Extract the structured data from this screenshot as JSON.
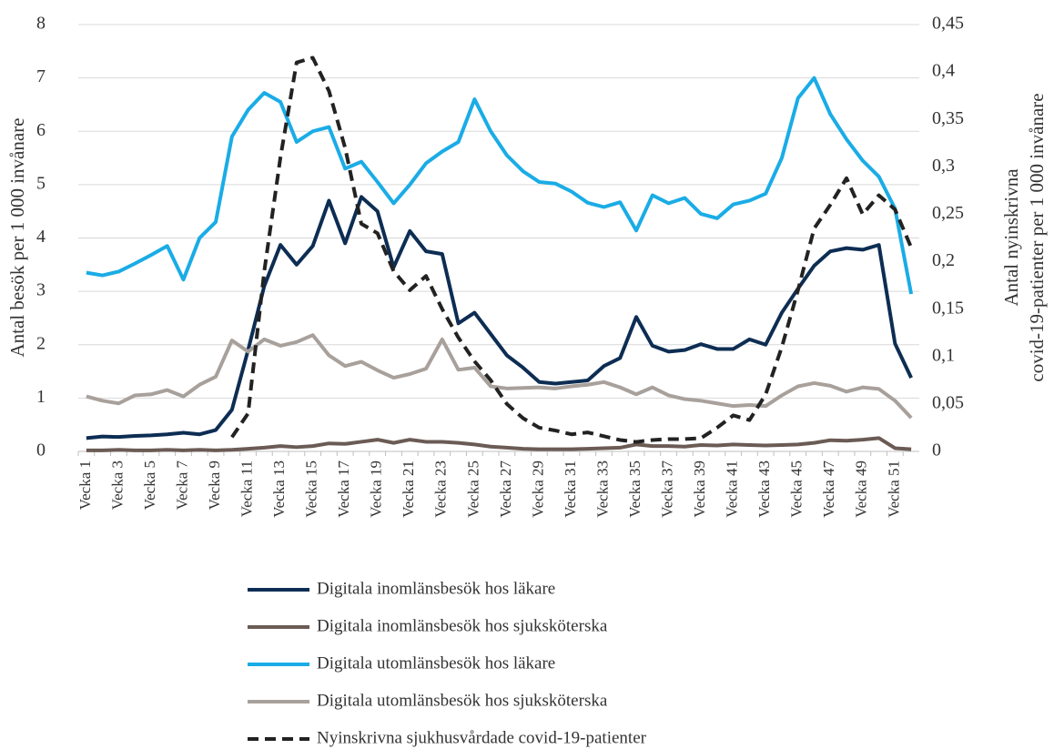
{
  "chart_data": {
    "type": "line",
    "ylabel": "Antal besök per 1 000 invånare",
    "y2label": [
      "Antal nyinskrivna",
      "covid-19-patienter per 1 000 invånare"
    ],
    "categories": [
      "Vecka 1",
      null,
      "Vecka 3",
      null,
      "Vecka 5",
      null,
      "Vecka 7",
      null,
      "Vecka 9",
      null,
      "Vecka 11",
      null,
      "Vecka 13",
      null,
      "Vecka 15",
      null,
      "Vecka 17",
      null,
      "Vecka 19",
      null,
      "Vecka 21",
      null,
      "Vecka 23",
      null,
      "Vecka 25",
      null,
      "Vecka 27",
      null,
      "Vecka 29",
      null,
      "Vecka 31",
      null,
      "Vecka 33",
      null,
      "Vecka 35",
      null,
      "Vecka 37",
      null,
      "Vecka 39",
      null,
      "Vecka 41",
      null,
      "Vecka 43",
      null,
      "Vecka 45",
      null,
      "Vecka 47",
      null,
      "Vecka 49",
      null,
      "Vecka 51",
      null
    ],
    "ylim": [
      0,
      8
    ],
    "yticks": [
      0,
      1,
      2,
      3,
      4,
      5,
      6,
      7,
      8
    ],
    "y2lim": [
      0,
      0.45
    ],
    "y2ticks": [
      0,
      {
        "value": 0.05,
        "label": "0,05"
      },
      {
        "value": 0.1,
        "label": "0,1"
      },
      {
        "value": 0.15,
        "label": "0,15"
      },
      {
        "value": 0.2,
        "label": "0,2"
      },
      {
        "value": 0.25,
        "label": "0,25"
      },
      {
        "value": 0.3,
        "label": "0,3"
      },
      {
        "value": 0.35,
        "label": "0,35"
      },
      {
        "value": 0.4,
        "label": "0,4"
      },
      {
        "value": 0.45,
        "label": "0,45"
      }
    ],
    "grid": true,
    "legend": "bottom",
    "series": [
      {
        "name": "Digitala inomlänsbesök hos läkare",
        "color": "#0d2d53",
        "dashed": false,
        "values": [
          0.25,
          0.28,
          0.27,
          0.29,
          0.3,
          0.32,
          0.35,
          0.32,
          0.4,
          0.78,
          1.9,
          3.1,
          3.87,
          3.5,
          3.85,
          4.7,
          3.9,
          4.77,
          4.5,
          3.45,
          4.13,
          3.75,
          3.7,
          2.4,
          2.6,
          2.2,
          1.8,
          1.57,
          1.3,
          1.27,
          1.3,
          1.33,
          1.6,
          1.75,
          2.52,
          1.98,
          1.87,
          1.9,
          2.01,
          1.92,
          1.92,
          2.1,
          2.0,
          2.6,
          3.05,
          3.48,
          3.75,
          3.81,
          3.78,
          3.87,
          2.02,
          1.38
        ]
      },
      {
        "name": "Digitala inomlänsbesök hos sjuksköterska",
        "color": "#6b5b55",
        "dashed": false,
        "values": [
          0.02,
          0.02,
          0.03,
          0.02,
          0.02,
          0.03,
          0.02,
          0.03,
          0.02,
          0.03,
          0.05,
          0.07,
          0.1,
          0.08,
          0.1,
          0.15,
          0.14,
          0.18,
          0.22,
          0.16,
          0.22,
          0.18,
          0.18,
          0.16,
          0.13,
          0.09,
          0.07,
          0.05,
          0.04,
          0.04,
          0.04,
          0.05,
          0.06,
          0.07,
          0.13,
          0.1,
          0.1,
          0.09,
          0.12,
          0.11,
          0.13,
          0.12,
          0.11,
          0.12,
          0.13,
          0.16,
          0.21,
          0.2,
          0.22,
          0.25,
          0.06,
          0.04
        ]
      },
      {
        "name": "Digitala utomlänsbesök hos läkare",
        "color": "#1aace6",
        "dashed": false,
        "values": [
          3.35,
          3.3,
          3.37,
          3.52,
          3.68,
          3.85,
          3.22,
          4.0,
          4.3,
          5.9,
          6.4,
          6.72,
          6.55,
          5.8,
          6.0,
          6.08,
          5.3,
          5.43,
          5.05,
          4.65,
          5.0,
          5.4,
          5.62,
          5.8,
          6.6,
          6.0,
          5.55,
          5.25,
          5.05,
          5.02,
          4.87,
          4.66,
          4.58,
          4.67,
          4.14,
          4.8,
          4.65,
          4.75,
          4.45,
          4.37,
          4.63,
          4.7,
          4.83,
          5.5,
          6.62,
          7.0,
          6.32,
          5.85,
          5.45,
          5.15,
          4.55,
          2.95
        ]
      },
      {
        "name": "Digitala utomlänsbesök hos sjuksköterska",
        "color": "#a8a09b",
        "dashed": false,
        "values": [
          1.03,
          0.95,
          0.9,
          1.05,
          1.07,
          1.15,
          1.03,
          1.25,
          1.4,
          2.08,
          1.87,
          2.1,
          1.98,
          2.05,
          2.18,
          1.8,
          1.6,
          1.68,
          1.52,
          1.38,
          1.45,
          1.55,
          2.1,
          1.53,
          1.57,
          1.22,
          1.18,
          1.19,
          1.2,
          1.18,
          1.22,
          1.25,
          1.3,
          1.2,
          1.07,
          1.2,
          1.05,
          0.98,
          0.95,
          0.9,
          0.85,
          0.87,
          0.85,
          1.05,
          1.22,
          1.28,
          1.23,
          1.12,
          1.2,
          1.17,
          0.95,
          0.63
        ]
      },
      {
        "name": "Nyinskrivna sjukhusvårdade covid-19-patienter",
        "color": "#222222",
        "dashed": true,
        "axis": "y2",
        "values": [
          null,
          null,
          null,
          null,
          null,
          null,
          null,
          null,
          null,
          0.015,
          0.04,
          0.19,
          0.31,
          0.41,
          0.415,
          0.38,
          0.32,
          0.24,
          0.23,
          0.19,
          0.17,
          0.185,
          0.15,
          0.12,
          0.095,
          0.075,
          0.05,
          0.035,
          0.025,
          0.022,
          0.018,
          0.02,
          0.016,
          0.012,
          0.01,
          0.012,
          0.013,
          0.013,
          0.014,
          0.025,
          0.038,
          0.033,
          0.06,
          0.11,
          0.17,
          0.235,
          0.26,
          0.288,
          0.25,
          0.27,
          0.255,
          0.215
        ]
      }
    ]
  }
}
